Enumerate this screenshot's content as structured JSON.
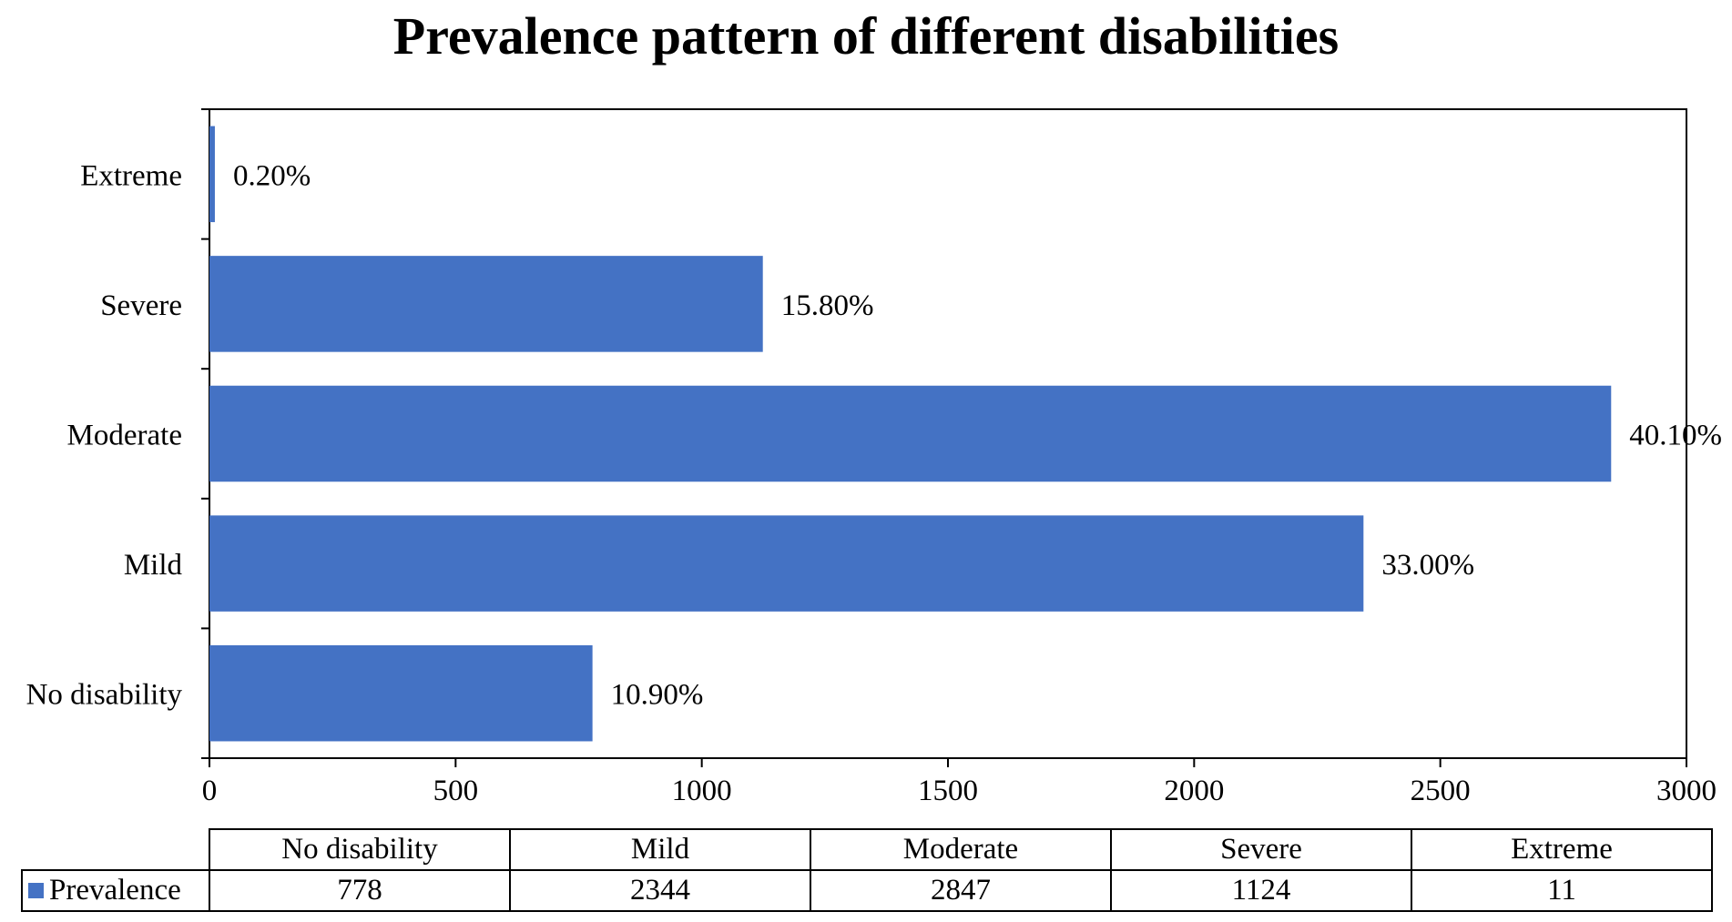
{
  "chart_data": {
    "type": "bar",
    "orientation": "horizontal",
    "title": "Prevalence pattern of different disabilities",
    "categories": [
      "No disability",
      "Mild",
      "Moderate",
      "Severe",
      "Extreme"
    ],
    "series": [
      {
        "name": "Prevalence",
        "values": [
          778,
          2344,
          2847,
          1124,
          11
        ],
        "color": "#4472c4"
      }
    ],
    "data_labels": [
      "10.90%",
      "33.00%",
      "40.10%",
      "15.80%",
      "0.20%"
    ],
    "xlim": [
      0,
      3000
    ],
    "xticks": [
      0,
      500,
      1000,
      1500,
      2000,
      2500,
      3000
    ],
    "xlabel": "",
    "ylabel": "",
    "grid": false,
    "legend": "data-table"
  }
}
